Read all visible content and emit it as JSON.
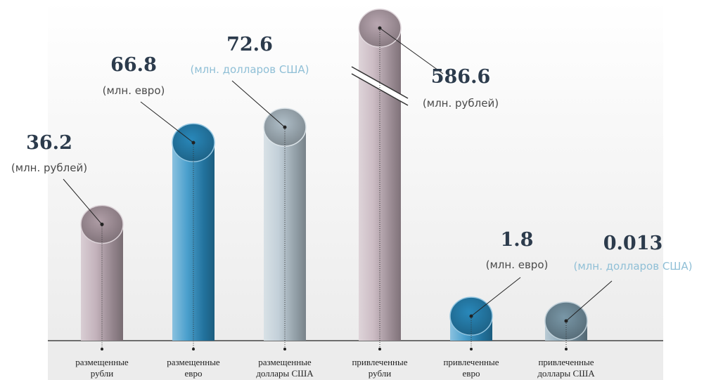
{
  "chart_data": {
    "type": "cylinder",
    "categories": [
      [
        "размещенные",
        "рубли"
      ],
      [
        "размещенные",
        "евро"
      ],
      [
        "размещенные",
        "доллары США"
      ],
      [
        "привлеченные",
        "рубли"
      ],
      [
        "привлеченные",
        "евро"
      ],
      [
        "привлеченные",
        "доллары США"
      ]
    ],
    "values": [
      36.2,
      66.8,
      72.6,
      586.6,
      1.8,
      0.013
    ],
    "units": [
      "(млн. рублей)",
      "(млн. евро)",
      "(млн. долларов США)",
      "(млн. рублей)",
      "(млн. евро)",
      "(млн. долларов США)"
    ],
    "unit_colors": [
      "#4a4a4a",
      "#4a4a4a",
      "#8fbfd6",
      "#4a4a4a",
      "#4a4a4a",
      "#8fbfd6"
    ],
    "colors": [
      "#b9a6b0",
      "#2b8fc4",
      "#b8c8d2",
      "#c3b0ba",
      "#2b8fc4",
      "#7f9fb0"
    ]
  }
}
